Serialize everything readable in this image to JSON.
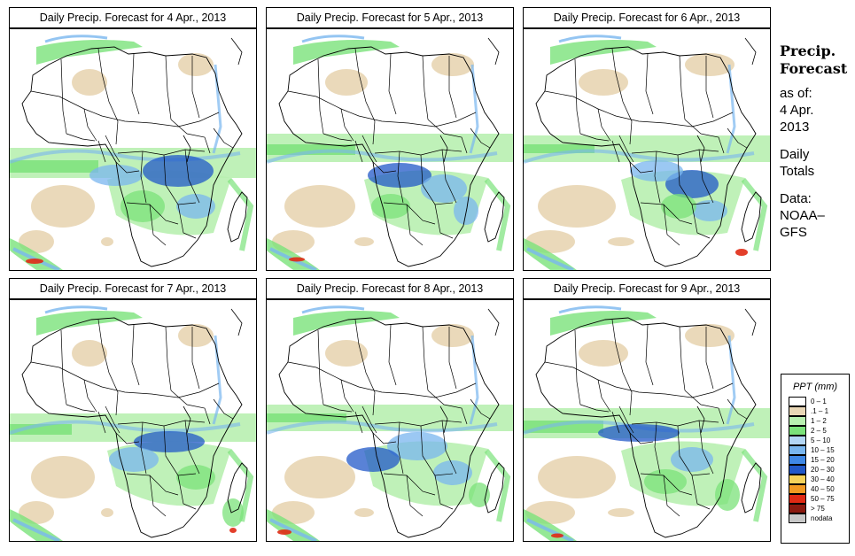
{
  "panels": [
    {
      "title": "Daily Precip. Forecast for  4 Apr., 2013",
      "variant": 0
    },
    {
      "title": "Daily Precip. Forecast for  5 Apr., 2013",
      "variant": 1
    },
    {
      "title": "Daily Precip. Forecast for  6 Apr., 2013",
      "variant": 2
    },
    {
      "title": "Daily Precip. Forecast for  7 Apr., 2013",
      "variant": 3
    },
    {
      "title": "Daily Precip. Forecast for  8 Apr., 2013",
      "variant": 4
    },
    {
      "title": "Daily Precip. Forecast for  9 Apr., 2013",
      "variant": 5
    }
  ],
  "side": {
    "title_line1": "Precip.",
    "title_line2": "Forecast",
    "asof_label": "as of:",
    "asof_date": "4 Apr.",
    "asof_year": "2013",
    "daily_line1": "Daily",
    "daily_line2": "Totals",
    "data_line1": "Data:",
    "data_line2": "NOAA–",
    "data_line3": "GFS"
  },
  "legend": {
    "title": "PPT (mm)",
    "items": [
      {
        "label": "0 – 1",
        "color": "#ffffff"
      },
      {
        "label": ".1 – 1",
        "color": "#e9d7b6"
      },
      {
        "label": "1 – 2",
        "color": "#b8f0b0"
      },
      {
        "label": "2 – 5",
        "color": "#7be27a"
      },
      {
        "label": "5 – 10",
        "color": "#b3d6f5"
      },
      {
        "label": "10 – 15",
        "color": "#79b6ef"
      },
      {
        "label": "15 – 20",
        "color": "#3f88e6"
      },
      {
        "label": "20 – 30",
        "color": "#2158c8"
      },
      {
        "label": "30 – 40",
        "color": "#f5d25a"
      },
      {
        "label": "40 – 50",
        "color": "#f29a22"
      },
      {
        "label": "50 – 75",
        "color": "#e02a14"
      },
      {
        "label": "> 75",
        "color": "#8b1a10"
      },
      {
        "label": "nodata",
        "color": "#c8c8c8"
      }
    ]
  },
  "colors": {
    "dry": "#e9d7b6",
    "light": "#b8f0b0",
    "green": "#7be27a",
    "blue": "#79b6ef",
    "dblue": "#2158c8",
    "red": "#e02a14",
    "land": "#ffffff"
  }
}
